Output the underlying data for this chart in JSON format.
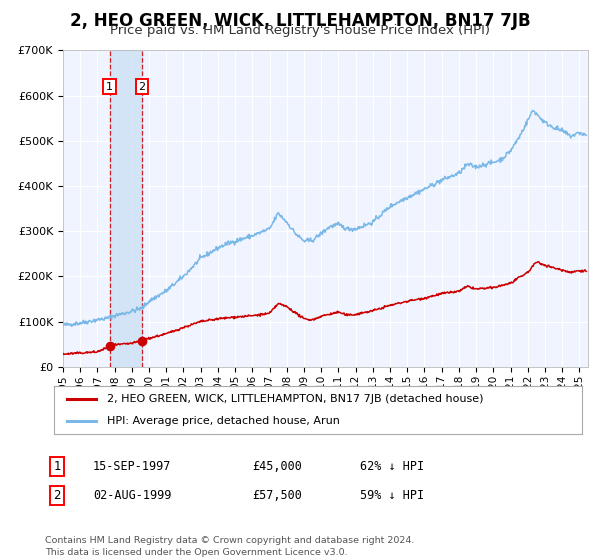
{
  "title": "2, HEO GREEN, WICK, LITTLEHAMPTON, BN17 7JB",
  "subtitle": "Price paid vs. HM Land Registry's House Price Index (HPI)",
  "title_fontsize": 12,
  "subtitle_fontsize": 9.5,
  "bg_color": "#ffffff",
  "plot_bg_color": "#f0f4ff",
  "grid_color": "#ffffff",
  "hpi_color": "#7ab8e8",
  "price_color": "#cc0000",
  "transaction1_date": 1997.708,
  "transaction1_price": 45000,
  "transaction2_date": 1999.583,
  "transaction2_price": 57500,
  "legend_entry1": "2, HEO GREEN, WICK, LITTLEHAMPTON, BN17 7JB (detached house)",
  "legend_entry2": "HPI: Average price, detached house, Arun",
  "table_row1": [
    "1",
    "15-SEP-1997",
    "£45,000",
    "62% ↓ HPI"
  ],
  "table_row2": [
    "2",
    "02-AUG-1999",
    "£57,500",
    "59% ↓ HPI"
  ],
  "footer": "Contains HM Land Registry data © Crown copyright and database right 2024.\nThis data is licensed under the Open Government Licence v3.0.",
  "xmin": 1995.0,
  "xmax": 2025.5,
  "ymin": 0,
  "ymax": 700000,
  "yticks": [
    0,
    100000,
    200000,
    300000,
    400000,
    500000,
    600000,
    700000
  ],
  "ylabels": [
    "£0",
    "£100K",
    "£200K",
    "£300K",
    "£400K",
    "£500K",
    "£600K",
    "£700K"
  ],
  "xtick_years": [
    1995,
    1996,
    1997,
    1998,
    1999,
    2000,
    2001,
    2002,
    2003,
    2004,
    2005,
    2006,
    2007,
    2008,
    2009,
    2010,
    2011,
    2012,
    2013,
    2014,
    2015,
    2016,
    2017,
    2018,
    2019,
    2020,
    2021,
    2022,
    2023,
    2024,
    2025
  ],
  "hpi_keypoints": [
    [
      1995.0,
      92000
    ],
    [
      1996.0,
      97000
    ],
    [
      1997.0,
      104000
    ],
    [
      1997.5,
      107000
    ],
    [
      1998.0,
      113000
    ],
    [
      1999.0,
      123000
    ],
    [
      1999.6,
      130000
    ],
    [
      2000.0,
      145000
    ],
    [
      2001.0,
      168000
    ],
    [
      2002.0,
      200000
    ],
    [
      2003.0,
      240000
    ],
    [
      2004.0,
      263000
    ],
    [
      2004.5,
      272000
    ],
    [
      2005.0,
      278000
    ],
    [
      2006.0,
      290000
    ],
    [
      2007.0,
      305000
    ],
    [
      2007.5,
      340000
    ],
    [
      2008.0,
      320000
    ],
    [
      2008.5,
      295000
    ],
    [
      2009.0,
      278000
    ],
    [
      2009.5,
      280000
    ],
    [
      2010.0,
      295000
    ],
    [
      2010.5,
      310000
    ],
    [
      2011.0,
      315000
    ],
    [
      2011.5,
      305000
    ],
    [
      2012.0,
      305000
    ],
    [
      2013.0,
      320000
    ],
    [
      2014.0,
      355000
    ],
    [
      2015.0,
      375000
    ],
    [
      2016.0,
      393000
    ],
    [
      2017.0,
      413000
    ],
    [
      2018.0,
      428000
    ],
    [
      2018.5,
      448000
    ],
    [
      2019.0,
      442000
    ],
    [
      2019.5,
      448000
    ],
    [
      2020.0,
      452000
    ],
    [
      2020.5,
      460000
    ],
    [
      2021.0,
      478000
    ],
    [
      2021.5,
      508000
    ],
    [
      2022.0,
      545000
    ],
    [
      2022.3,
      568000
    ],
    [
      2022.5,
      560000
    ],
    [
      2023.0,
      540000
    ],
    [
      2023.5,
      530000
    ],
    [
      2024.0,
      522000
    ],
    [
      2024.5,
      510000
    ],
    [
      2025.0,
      518000
    ],
    [
      2025.4,
      512000
    ]
  ],
  "price_keypoints": [
    [
      1995.0,
      28000
    ],
    [
      1996.0,
      30500
    ],
    [
      1997.0,
      33000
    ],
    [
      1997.7,
      45000
    ],
    [
      1998.0,
      48000
    ],
    [
      1999.0,
      52000
    ],
    [
      1999.6,
      57500
    ],
    [
      2000.0,
      63000
    ],
    [
      2001.0,
      73000
    ],
    [
      2002.0,
      87000
    ],
    [
      2003.0,
      100000
    ],
    [
      2004.0,
      106000
    ],
    [
      2005.0,
      110000
    ],
    [
      2006.0,
      113000
    ],
    [
      2007.0,
      118000
    ],
    [
      2007.5,
      140000
    ],
    [
      2008.0,
      133000
    ],
    [
      2009.0,
      106000
    ],
    [
      2009.5,
      104000
    ],
    [
      2010.0,
      112000
    ],
    [
      2011.0,
      121000
    ],
    [
      2011.5,
      114000
    ],
    [
      2012.0,
      116000
    ],
    [
      2013.0,
      124000
    ],
    [
      2014.0,
      136000
    ],
    [
      2015.0,
      145000
    ],
    [
      2016.0,
      152000
    ],
    [
      2017.0,
      162000
    ],
    [
      2018.0,
      167000
    ],
    [
      2018.5,
      178000
    ],
    [
      2019.0,
      172000
    ],
    [
      2020.0,
      175000
    ],
    [
      2021.0,
      185000
    ],
    [
      2021.5,
      197000
    ],
    [
      2022.0,
      209000
    ],
    [
      2022.5,
      232000
    ],
    [
      2023.0,
      225000
    ],
    [
      2023.5,
      219000
    ],
    [
      2024.0,
      214000
    ],
    [
      2024.5,
      209000
    ],
    [
      2025.0,
      213000
    ],
    [
      2025.4,
      212000
    ]
  ]
}
